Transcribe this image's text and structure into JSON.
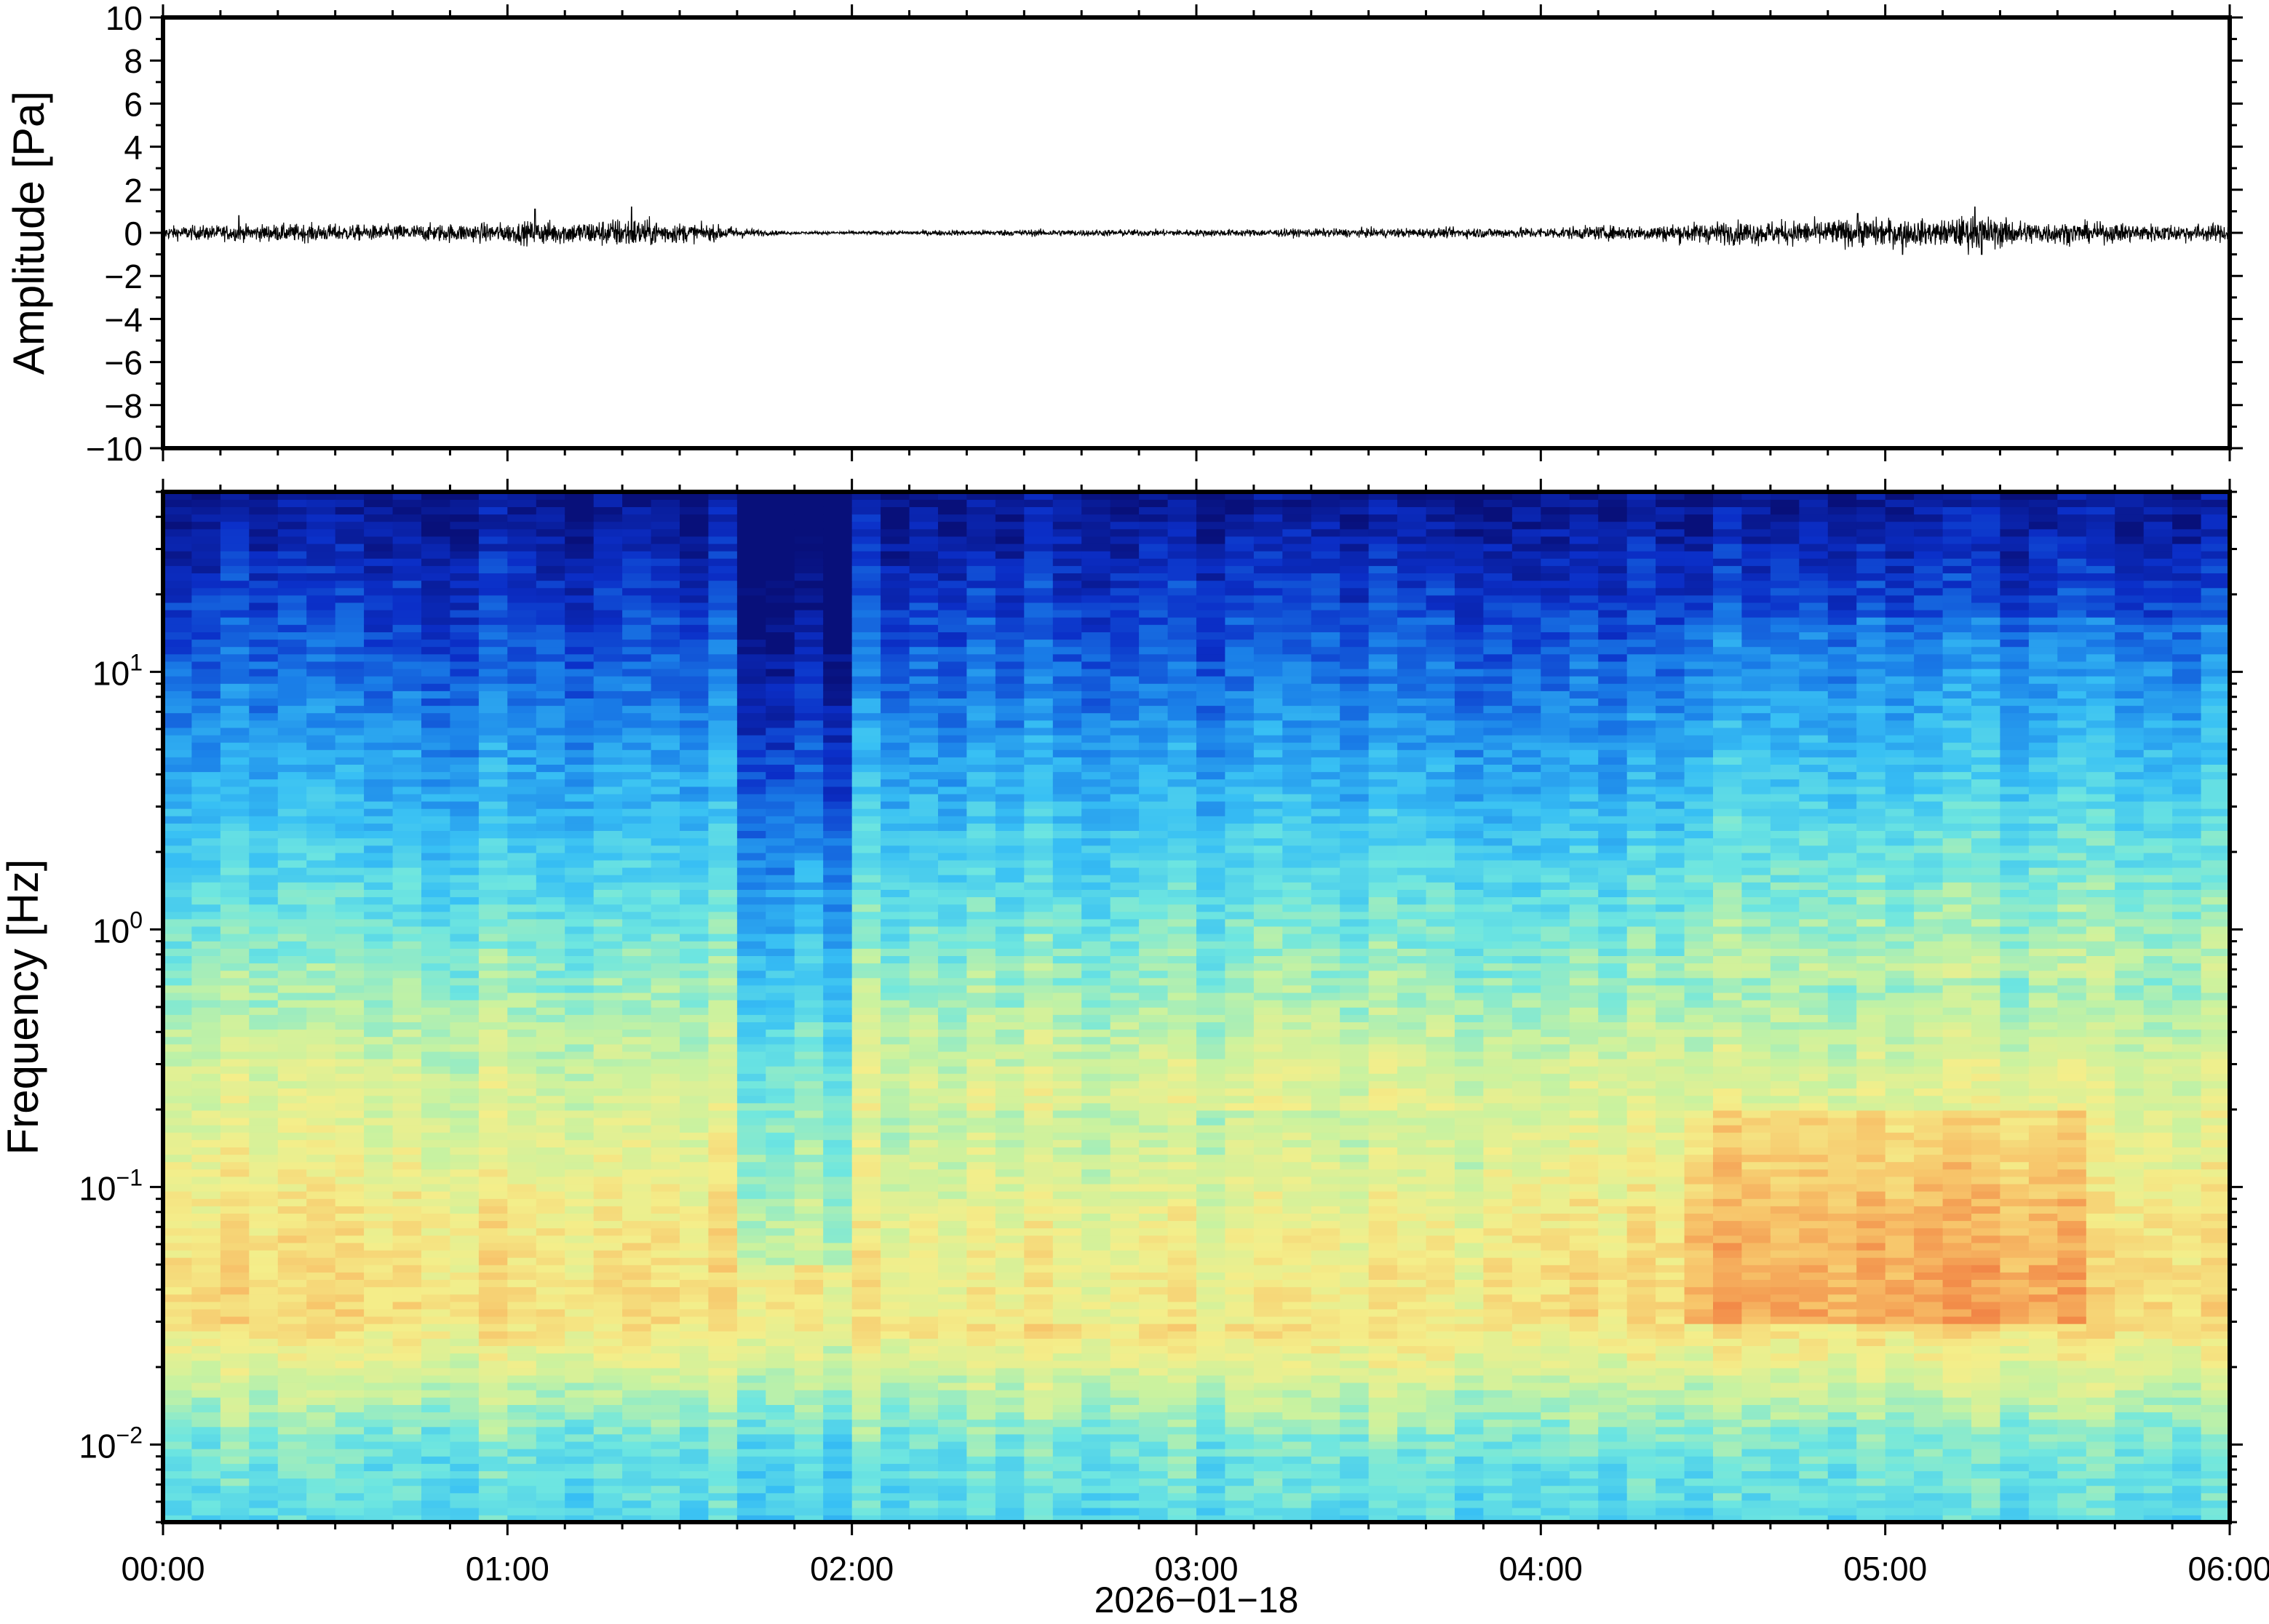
{
  "chart_data": [
    {
      "type": "line",
      "panel": "waveform",
      "ylabel": "Amplitude [Pa]",
      "ylim": [
        -10,
        10
      ],
      "yticks": [
        10,
        8,
        6,
        4,
        2,
        0,
        -2,
        -4,
        -6,
        -8,
        -10
      ],
      "ytick_labels": [
        "10",
        "8",
        "6",
        "4",
        "2",
        "0",
        "−2",
        "−4",
        "−6",
        "−8",
        "−10"
      ],
      "xlim_hours": [
        0,
        6
      ],
      "line_color": "#000000",
      "envelope": {
        "t_hours": [
          0.0,
          0.2,
          0.4,
          0.6,
          0.8,
          1.0,
          1.1,
          1.2,
          1.35,
          1.5,
          1.65,
          1.75,
          1.85,
          2.0,
          2.25,
          2.5,
          3.0,
          3.5,
          4.0,
          4.3,
          4.5,
          4.75,
          5.0,
          5.15,
          5.25,
          5.4,
          5.6,
          5.8,
          6.0
        ],
        "amplitude_pa": [
          0.3,
          0.35,
          0.4,
          0.35,
          0.4,
          0.45,
          0.55,
          0.5,
          0.7,
          0.45,
          0.3,
          0.12,
          0.06,
          0.08,
          0.12,
          0.15,
          0.15,
          0.2,
          0.25,
          0.35,
          0.5,
          0.55,
          0.65,
          0.55,
          0.8,
          0.55,
          0.45,
          0.4,
          0.4
        ]
      },
      "peaks": [
        {
          "t_hours": 0.22,
          "value_pa": 0.8
        },
        {
          "t_hours": 1.08,
          "value_pa": 1.1
        },
        {
          "t_hours": 1.36,
          "value_pa": 1.2
        },
        {
          "t_hours": 4.92,
          "value_pa": 0.9
        },
        {
          "t_hours": 5.05,
          "value_pa": -1.0
        },
        {
          "t_hours": 5.26,
          "value_pa": 1.2
        },
        {
          "t_hours": 5.28,
          "value_pa": -1.0
        }
      ]
    },
    {
      "type": "heatmap",
      "panel": "spectrogram",
      "ylabel": "Frequency [Hz]",
      "yscale": "log",
      "ylim_hz": [
        0.005,
        50
      ],
      "ytick_labels": [
        {
          "base": "10",
          "exp": "1",
          "value_hz": 10
        },
        {
          "base": "10",
          "exp": "0",
          "value_hz": 1
        },
        {
          "base": "10",
          "exp": "−1",
          "value_hz": 0.1
        },
        {
          "base": "10",
          "exp": "−2",
          "value_hz": 0.01
        }
      ],
      "colormap": "jet",
      "colormap_stops": [
        "#08107a",
        "#0b2fc8",
        "#1a7fe8",
        "#38c0f4",
        "#6ee6e0",
        "#c8f2a0",
        "#f4ee8a",
        "#f7c46a",
        "#f28a48",
        "#e0443a"
      ],
      "time_blocks": 72,
      "xlim_hours": [
        0,
        6
      ],
      "xticks": [
        "00:00",
        "01:00",
        "02:00",
        "03:00",
        "04:00",
        "05:00",
        "06:00"
      ],
      "xlabel": "2026−01−18",
      "features": [
        {
          "type": "quiet_period",
          "t_start_hours": 1.7,
          "t_end_hours": 2.0,
          "note_level": "lower power at high frequency"
        },
        {
          "type": "microbarom_band",
          "f_hz": [
            0.03,
            0.2
          ],
          "strongest_hours": [
            4.4,
            5.6
          ]
        }
      ]
    }
  ]
}
